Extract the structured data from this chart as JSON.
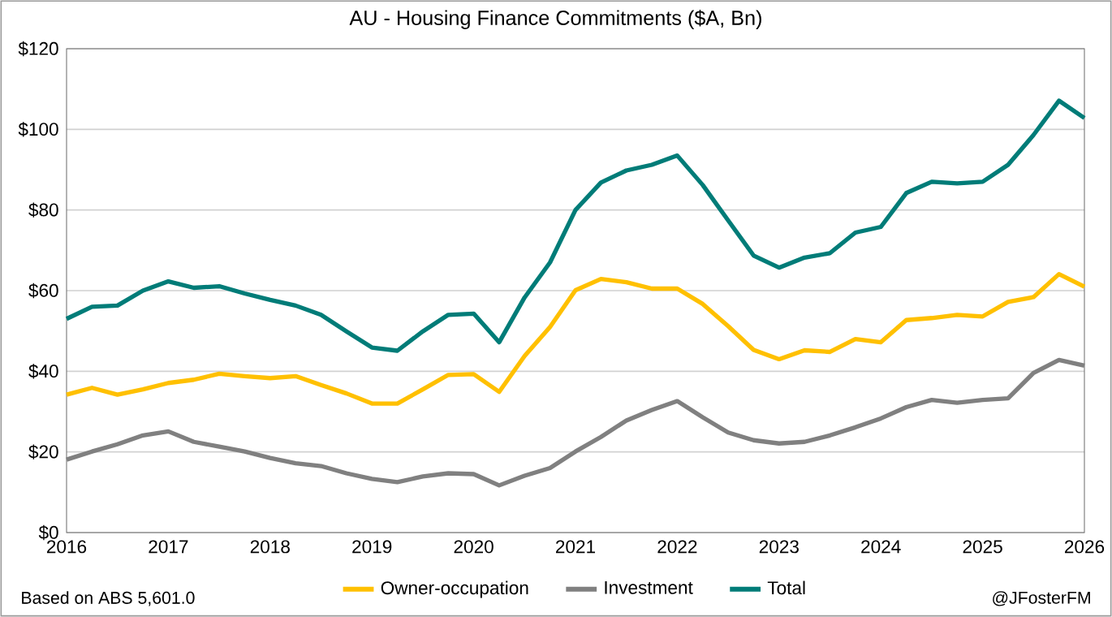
{
  "chart_data": {
    "type": "line",
    "title": "AU - Housing Finance Commitments ($A, Bn)",
    "x": [
      2016.0,
      2016.25,
      2016.5,
      2016.75,
      2017.0,
      2017.25,
      2017.5,
      2017.75,
      2018.0,
      2018.25,
      2018.5,
      2018.75,
      2019.0,
      2019.25,
      2019.5,
      2019.75,
      2020.0,
      2020.25,
      2020.5,
      2020.75,
      2021.0,
      2021.25,
      2021.5,
      2021.75,
      2022.0,
      2022.25,
      2022.5,
      2022.75,
      2023.0,
      2023.25,
      2023.5,
      2023.75,
      2024.0,
      2024.25,
      2024.5,
      2024.75,
      2025.0,
      2025.25,
      2025.5,
      2025.75,
      2026.0
    ],
    "series": [
      {
        "name": "Owner-occupation",
        "color": "#ffc000",
        "values": [
          34.2,
          35.9,
          34.2,
          35.5,
          37.1,
          37.9,
          39.4,
          38.8,
          38.3,
          38.8,
          36.6,
          34.5,
          32,
          32,
          35.5,
          39.1,
          39.3,
          34.9,
          43.8,
          51,
          60.1,
          62.9,
          62.1,
          60.5,
          60.5,
          56.7,
          51.2,
          45.3,
          43,
          45.2,
          44.8,
          48,
          47.2,
          52.7,
          53.2,
          54,
          53.6,
          57.2,
          58.4,
          64.1,
          61
        ]
      },
      {
        "name": "Investment",
        "color": "#808080",
        "values": [
          18.1,
          20.1,
          21.9,
          24.1,
          25.1,
          22.5,
          21.3,
          20.1,
          18.5,
          17.2,
          16.5,
          14.7,
          13.3,
          12.5,
          13.9,
          14.7,
          14.5,
          11.7,
          14.1,
          16,
          20.1,
          23.7,
          27.8,
          30.4,
          32.6,
          28.6,
          24.8,
          22.9,
          22.1,
          22.5,
          24.1,
          26.1,
          28.3,
          31.1,
          32.9,
          32.2,
          32.9,
          33.3,
          39.6,
          42.8,
          41.4
        ]
      },
      {
        "name": "Total",
        "color": "#007c78",
        "values": [
          53,
          56,
          56.3,
          60,
          62.3,
          60.7,
          61.1,
          59.3,
          57.7,
          56.3,
          54,
          49.9,
          45.9,
          45.1,
          49.9,
          54,
          54.3,
          47.2,
          58.3,
          67,
          80,
          86.8,
          89.8,
          91.2,
          93.5,
          86.2,
          77.4,
          68.7,
          65.7,
          68.2,
          69.3,
          74.4,
          75.8,
          84.2,
          87,
          86.6,
          87,
          91.2,
          98.6,
          107.1,
          102.8
        ]
      }
    ],
    "xlim": [
      2016,
      2026
    ],
    "xticks": [
      2016,
      2017,
      2018,
      2019,
      2020,
      2021,
      2022,
      2023,
      2024,
      2025,
      2026
    ],
    "ylim": [
      0,
      120
    ],
    "yticks": [
      {
        "value": 0,
        "label": "$0"
      },
      {
        "value": 20,
        "label": "$20"
      },
      {
        "value": 40,
        "label": "$40"
      },
      {
        "value": 60,
        "label": "$60"
      },
      {
        "value": 80,
        "label": "$80"
      },
      {
        "value": 100,
        "label": "$100"
      },
      {
        "value": 120,
        "label": "$120"
      }
    ],
    "grid": "y",
    "legend": "bottom",
    "line_style": "solid",
    "annotations": [
      "Based on ABS 5,601.0",
      "@JFosterFM"
    ]
  }
}
